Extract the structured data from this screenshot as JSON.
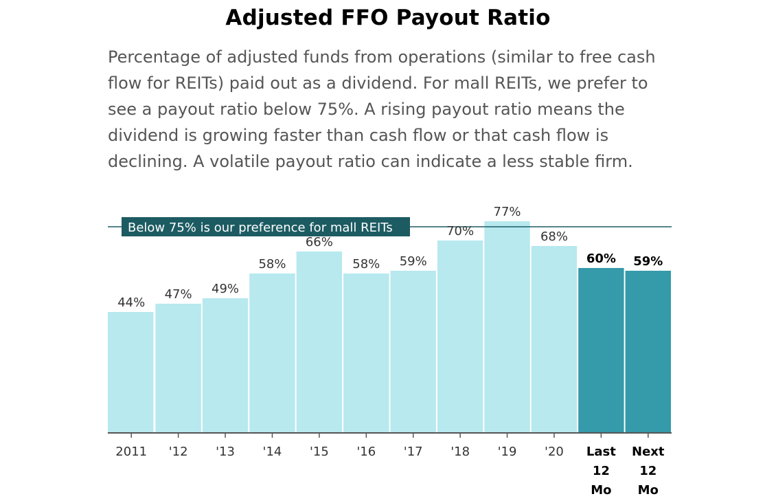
{
  "chart_data": {
    "type": "bar",
    "title": "Adjusted FFO Payout Ratio",
    "subtitle": "Percentage of adjusted funds from operations (similar to free cash flow for REITs) paid out as a dividend. For mall REITs, we prefer to see a payout ratio below 75%. A rising payout ratio means the dividend is growing faster than cash flow or that cash flow is declining. A volatile payout ratio can indicate a less stable firm.",
    "categories": [
      "2011",
      "'12",
      "'13",
      "'14",
      "'15",
      "'16",
      "'17",
      "'18",
      "'19",
      "'20",
      "Last 12 Mo",
      "Next 12 Mo"
    ],
    "category_lines": [
      [
        "2011"
      ],
      [
        "'12"
      ],
      [
        "'13"
      ],
      [
        "'14"
      ],
      [
        "'15"
      ],
      [
        "'16"
      ],
      [
        "'17"
      ],
      [
        "'18"
      ],
      [
        "'19"
      ],
      [
        "'20"
      ],
      [
        "Last",
        "12",
        "Mo"
      ],
      [
        "Next",
        "12",
        "Mo"
      ]
    ],
    "values": [
      44,
      47,
      49,
      58,
      66,
      58,
      59,
      70,
      77,
      68,
      60,
      59
    ],
    "value_labels": [
      "44%",
      "47%",
      "49%",
      "58%",
      "66%",
      "58%",
      "59%",
      "70%",
      "77%",
      "68%",
      "60%",
      "59%"
    ],
    "highlight": [
      false,
      false,
      false,
      false,
      false,
      false,
      false,
      false,
      false,
      false,
      true,
      true
    ],
    "reference_line": {
      "value": 75,
      "label": "Below 75% is our preference for mall REITs"
    },
    "ylim": [
      0,
      80
    ],
    "grid": false,
    "colors": {
      "bar": "#b7e9ef",
      "bar_highlight": "#359aaa",
      "reference": "#1c5b62",
      "axis": "#555555"
    }
  }
}
